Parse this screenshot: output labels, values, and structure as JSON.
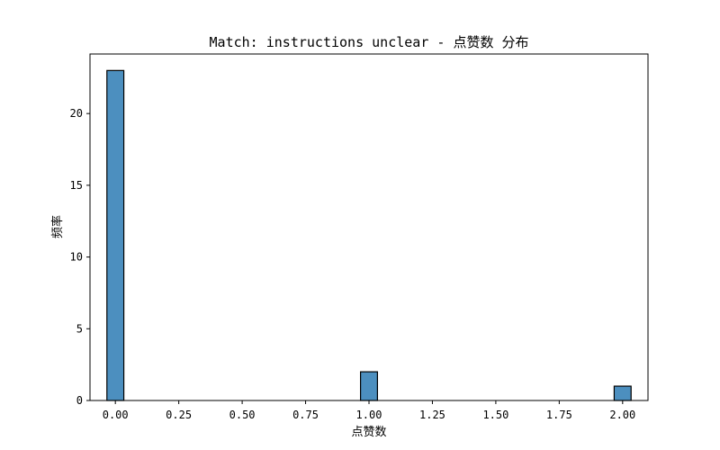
{
  "chart_data": {
    "type": "bar",
    "title": "Match: instructions unclear - 点赞数 分布",
    "xlabel": "点赞数",
    "ylabel": "频率",
    "bar_color": "#4c8fbf",
    "edge_color": "#000000",
    "bin_width": 0.0667,
    "bins": [
      {
        "x": 0.0,
        "value": 23
      },
      {
        "x": 1.0,
        "value": 2
      },
      {
        "x": 2.0,
        "value": 1
      }
    ],
    "xlim": [
      -0.1,
      2.1
    ],
    "ylim": [
      0,
      24.15
    ],
    "xticks": [
      "0.00",
      "0.25",
      "0.50",
      "0.75",
      "1.00",
      "1.25",
      "1.50",
      "1.75",
      "2.00"
    ],
    "yticks": [
      "0",
      "5",
      "10",
      "15",
      "20"
    ],
    "grid": false,
    "legend": "none"
  }
}
